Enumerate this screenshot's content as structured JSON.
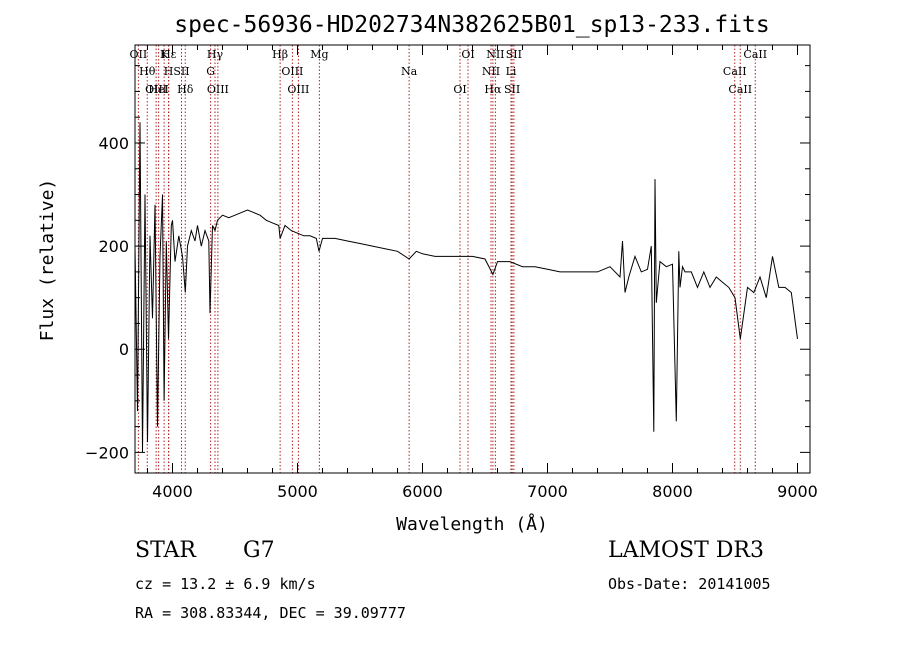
{
  "chart_data": {
    "type": "line",
    "title": "spec-56936-HD202734N382625B01_sp13-233.fits",
    "xlabel": "Wavelength (Å)",
    "ylabel": "Flux (relative)",
    "xlim": [
      3700,
      9100
    ],
    "ylim": [
      -240,
      590
    ],
    "xticks": [
      4000,
      5000,
      6000,
      7000,
      8000,
      9000
    ],
    "yticks": [
      -200,
      0,
      200,
      400
    ],
    "series": [
      {
        "name": "spectrum",
        "x": [
          3700,
          3720,
          3740,
          3760,
          3780,
          3800,
          3820,
          3840,
          3860,
          3880,
          3900,
          3920,
          3933,
          3950,
          3968,
          3990,
          4000,
          4020,
          4050,
          4080,
          4102,
          4120,
          4150,
          4180,
          4200,
          4230,
          4260,
          4290,
          4300,
          4320,
          4340,
          4360,
          4400,
          4450,
          4500,
          4550,
          4600,
          4650,
          4700,
          4750,
          4800,
          4850,
          4861,
          4900,
          4950,
          5000,
          5050,
          5100,
          5150,
          5172,
          5200,
          5300,
          5400,
          5500,
          5600,
          5700,
          5800,
          5893,
          5950,
          6000,
          6100,
          6200,
          6300,
          6400,
          6500,
          6563,
          6600,
          6700,
          6800,
          6900,
          7000,
          7100,
          7200,
          7300,
          7400,
          7500,
          7580,
          7600,
          7620,
          7650,
          7700,
          7750,
          7800,
          7830,
          7850,
          7860,
          7870,
          7900,
          7950,
          8000,
          8030,
          8050,
          8060,
          8080,
          8100,
          8150,
          8200,
          8250,
          8300,
          8350,
          8400,
          8450,
          8500,
          8542,
          8600,
          8650,
          8700,
          8750,
          8800,
          8850,
          8900,
          8950,
          9000
        ],
        "y": [
          200,
          -120,
          440,
          -200,
          300,
          -180,
          220,
          60,
          280,
          -150,
          180,
          300,
          -100,
          210,
          20,
          240,
          250,
          170,
          220,
          180,
          110,
          200,
          230,
          210,
          240,
          200,
          230,
          210,
          70,
          240,
          230,
          250,
          260,
          255,
          260,
          265,
          270,
          265,
          260,
          250,
          245,
          240,
          215,
          240,
          230,
          225,
          220,
          220,
          215,
          190,
          215,
          215,
          210,
          205,
          200,
          195,
          190,
          175,
          190,
          185,
          180,
          180,
          180,
          180,
          175,
          145,
          170,
          170,
          160,
          160,
          155,
          150,
          150,
          150,
          150,
          160,
          140,
          210,
          110,
          140,
          180,
          150,
          155,
          200,
          -160,
          330,
          90,
          170,
          160,
          165,
          -140,
          190,
          120,
          160,
          150,
          150,
          120,
          150,
          120,
          140,
          130,
          120,
          100,
          20,
          120,
          110,
          140,
          100,
          180,
          120,
          120,
          110,
          20
        ]
      }
    ],
    "lines": [
      {
        "label": "OII",
        "x": 3727
      },
      {
        "label": "Hθ",
        "x": 3798
      },
      {
        "label": "OIII",
        "x": 3869
      },
      {
        "label": "K",
        "x": 3933
      },
      {
        "label": "H",
        "x": 3968
      },
      {
        "label": "HeI",
        "x": 3889
      },
      {
        "label": "Hε",
        "x": 3970
      },
      {
        "label": "SII",
        "x": 4072
      },
      {
        "label": "Hδ",
        "x": 4102
      },
      {
        "label": "Hγ",
        "x": 4340
      },
      {
        "label": "G",
        "x": 4305
      },
      {
        "label": "OIII",
        "x": 4363
      },
      {
        "label": "Hβ",
        "x": 4861
      },
      {
        "label": "OIII",
        "x": 4959
      },
      {
        "label": "OIII",
        "x": 5007
      },
      {
        "label": "Mg",
        "x": 5175
      },
      {
        "label": "Na",
        "x": 5893
      },
      {
        "label": "OI",
        "x": 6300
      },
      {
        "label": "OI",
        "x": 6364
      },
      {
        "label": "NII",
        "x": 6548
      },
      {
        "label": "Hα",
        "x": 6563
      },
      {
        "label": "NII",
        "x": 6583
      },
      {
        "label": "Li",
        "x": 6708
      },
      {
        "label": "SII",
        "x": 6717
      },
      {
        "label": "SII",
        "x": 6731
      },
      {
        "label": "CaII",
        "x": 8498
      },
      {
        "label": "CaII",
        "x": 8542
      },
      {
        "label": "CaII",
        "x": 8662
      }
    ]
  },
  "info": {
    "object_class": "STAR",
    "subclass": "G7",
    "survey": "LAMOST DR3",
    "cz": "cz = 13.2 ± 6.9 km/s",
    "obs_date": "Obs-Date: 20141005",
    "coords": "RA = 308.83344, DEC =  39.09777"
  },
  "colors": {
    "line": "#000000",
    "marker": "#b22222",
    "axis": "#000000"
  }
}
